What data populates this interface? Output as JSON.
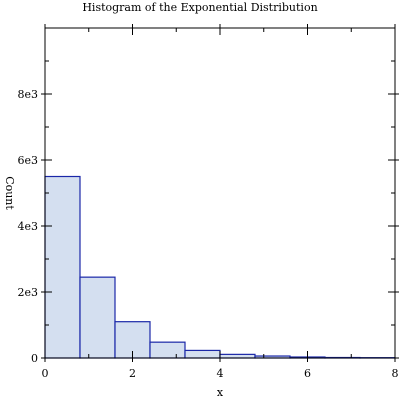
{
  "chart_data": {
    "type": "bar",
    "title": "Histogram of the Exponential Distribution",
    "xlabel": "x",
    "ylabel": "Count",
    "xlim": [
      0,
      8
    ],
    "ylim": [
      0,
      10000
    ],
    "bin_edges": [
      0,
      0.8,
      1.6,
      2.4,
      3.2,
      4.0,
      4.8,
      5.6,
      6.4,
      7.2,
      8.0
    ],
    "values": [
      5500,
      2450,
      1100,
      480,
      230,
      110,
      60,
      30,
      15,
      10
    ],
    "x_ticks": [
      0,
      2,
      4,
      6,
      8
    ],
    "x_tick_labels": [
      "0",
      "2",
      "4",
      "6",
      "8"
    ],
    "y_ticks": [
      0,
      2000,
      4000,
      6000,
      8000
    ],
    "y_tick_labels": [
      "0",
      "2e3",
      "4e3",
      "6e3",
      "8e3"
    ],
    "grid": false,
    "legend": "none"
  }
}
